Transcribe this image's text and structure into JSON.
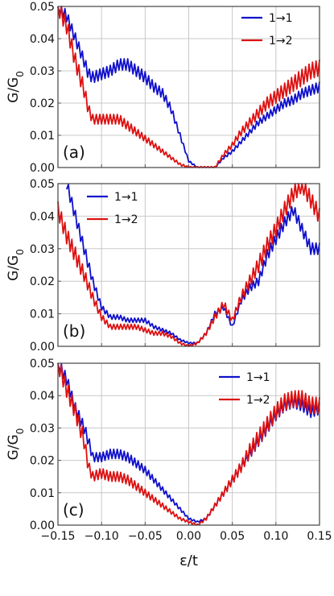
{
  "chart_data": [
    {
      "type": "line",
      "panel_label": "(a)",
      "ylabel": "G/G",
      "ylabel_sub": "0",
      "xlim": [
        -0.15,
        0.15
      ],
      "ylim": [
        0,
        0.05
      ],
      "yticks": [
        "0.00",
        "0.01",
        "0.02",
        "0.03",
        "0.04",
        "0.05"
      ],
      "grid": true,
      "legend": "top-right",
      "series": [
        {
          "name": "1→1",
          "color": "#1010cc",
          "x": [
            -0.15,
            -0.14,
            -0.13,
            -0.12,
            -0.115,
            -0.11,
            -0.1,
            -0.09,
            -0.08,
            -0.07,
            -0.06,
            -0.05,
            -0.04,
            -0.03,
            -0.02,
            -0.01,
            0.0,
            0.01,
            0.02,
            0.03,
            0.04,
            0.05,
            0.06,
            0.07,
            0.08,
            0.09,
            0.1,
            0.11,
            0.12,
            0.13,
            0.14,
            0.15
          ],
          "y": [
            0.05,
            0.047,
            0.04,
            0.033,
            0.029,
            0.028,
            0.029,
            0.03,
            0.032,
            0.032,
            0.03,
            0.028,
            0.025,
            0.023,
            0.018,
            0.01,
            0.002,
            0.0,
            0.0,
            0.0,
            0.003,
            0.005,
            0.008,
            0.011,
            0.014,
            0.016,
            0.018,
            0.02,
            0.021,
            0.023,
            0.024,
            0.025
          ]
        },
        {
          "name": "1→2",
          "color": "#dd1111",
          "x": [
            -0.15,
            -0.14,
            -0.13,
            -0.12,
            -0.115,
            -0.11,
            -0.1,
            -0.09,
            -0.08,
            -0.07,
            -0.06,
            -0.05,
            -0.04,
            -0.03,
            -0.02,
            -0.01,
            0.0,
            0.01,
            0.02,
            0.03,
            0.04,
            0.05,
            0.06,
            0.07,
            0.08,
            0.09,
            0.1,
            0.11,
            0.12,
            0.13,
            0.14,
            0.15
          ],
          "y": [
            0.05,
            0.044,
            0.033,
            0.024,
            0.018,
            0.015,
            0.015,
            0.015,
            0.015,
            0.013,
            0.011,
            0.009,
            0.007,
            0.005,
            0.003,
            0.001,
            0.0,
            0.0,
            0.0,
            0.0,
            0.004,
            0.007,
            0.011,
            0.014,
            0.017,
            0.02,
            0.022,
            0.024,
            0.026,
            0.028,
            0.03,
            0.031
          ]
        }
      ]
    },
    {
      "type": "line",
      "panel_label": "(b)",
      "ylabel": "G/G",
      "ylabel_sub": "0",
      "xlim": [
        -0.15,
        0.15
      ],
      "ylim": [
        0,
        0.05
      ],
      "yticks": [
        "0.00",
        "0.01",
        "0.02",
        "0.03",
        "0.04",
        "0.05"
      ],
      "grid": true,
      "legend": "top-left",
      "series": [
        {
          "name": "1→1",
          "color": "#1010cc",
          "x": [
            -0.14,
            -0.13,
            -0.12,
            -0.11,
            -0.1,
            -0.09,
            -0.08,
            -0.07,
            -0.06,
            -0.05,
            -0.04,
            -0.03,
            -0.02,
            -0.01,
            0.0,
            0.01,
            0.02,
            0.03,
            0.04,
            0.05,
            0.06,
            0.07,
            0.08,
            0.09,
            0.1,
            0.11,
            0.12,
            0.13,
            0.14,
            0.15
          ],
          "y": [
            0.05,
            0.04,
            0.03,
            0.02,
            0.012,
            0.009,
            0.009,
            0.008,
            0.008,
            0.008,
            0.006,
            0.005,
            0.004,
            0.002,
            0.001,
            0.001,
            0.004,
            0.01,
            0.012,
            0.006,
            0.014,
            0.018,
            0.02,
            0.028,
            0.033,
            0.038,
            0.042,
            0.036,
            0.03,
            0.03
          ]
        },
        {
          "name": "1→2",
          "color": "#dd1111",
          "x": [
            -0.15,
            -0.14,
            -0.13,
            -0.12,
            -0.11,
            -0.1,
            -0.09,
            -0.08,
            -0.07,
            -0.06,
            -0.05,
            -0.04,
            -0.03,
            -0.02,
            -0.01,
            0.0,
            0.01,
            0.02,
            0.03,
            0.04,
            0.05,
            0.06,
            0.07,
            0.08,
            0.09,
            0.1,
            0.11,
            0.12,
            0.13,
            0.14,
            0.15
          ],
          "y": [
            0.042,
            0.034,
            0.028,
            0.022,
            0.015,
            0.009,
            0.006,
            0.006,
            0.006,
            0.006,
            0.005,
            0.004,
            0.004,
            0.003,
            0.001,
            0.0,
            0.001,
            0.004,
            0.009,
            0.013,
            0.008,
            0.015,
            0.02,
            0.025,
            0.031,
            0.036,
            0.042,
            0.047,
            0.05,
            0.045,
            0.04
          ]
        }
      ]
    },
    {
      "type": "line",
      "panel_label": "(c)",
      "ylabel": "G/G",
      "ylabel_sub": "0",
      "xlabel": "ε/t",
      "xlim": [
        -0.15,
        0.15
      ],
      "ylim": [
        0,
        0.05
      ],
      "xticks": [
        "−0.15",
        "−0.10",
        "−0.05",
        "0.00",
        "0.05",
        "0.10",
        "0.15"
      ],
      "yticks": [
        "0.00",
        "0.01",
        "0.02",
        "0.03",
        "0.04",
        "0.05"
      ],
      "grid": true,
      "legend": "top-right",
      "series": [
        {
          "name": "1→1",
          "color": "#1010cc",
          "x": [
            -0.15,
            -0.14,
            -0.13,
            -0.12,
            -0.115,
            -0.11,
            -0.1,
            -0.09,
            -0.08,
            -0.07,
            -0.06,
            -0.05,
            -0.04,
            -0.03,
            -0.02,
            -0.01,
            0.0,
            0.01,
            0.02,
            0.03,
            0.04,
            0.05,
            0.06,
            0.07,
            0.08,
            0.09,
            0.1,
            0.11,
            0.12,
            0.13,
            0.14,
            0.15
          ],
          "y": [
            0.05,
            0.045,
            0.036,
            0.03,
            0.026,
            0.021,
            0.021,
            0.022,
            0.022,
            0.021,
            0.019,
            0.017,
            0.014,
            0.011,
            0.008,
            0.005,
            0.002,
            0.001,
            0.002,
            0.006,
            0.01,
            0.014,
            0.018,
            0.022,
            0.026,
            0.03,
            0.034,
            0.037,
            0.038,
            0.037,
            0.035,
            0.036
          ]
        },
        {
          "name": "1→2",
          "color": "#dd1111",
          "x": [
            -0.15,
            -0.14,
            -0.13,
            -0.12,
            -0.115,
            -0.11,
            -0.1,
            -0.09,
            -0.08,
            -0.07,
            -0.06,
            -0.05,
            -0.04,
            -0.03,
            -0.02,
            -0.01,
            0.0,
            0.01,
            0.02,
            0.03,
            0.04,
            0.05,
            0.06,
            0.07,
            0.08,
            0.09,
            0.1,
            0.11,
            0.12,
            0.13,
            0.14,
            0.15
          ],
          "y": [
            0.05,
            0.042,
            0.035,
            0.026,
            0.018,
            0.015,
            0.016,
            0.015,
            0.015,
            0.014,
            0.012,
            0.01,
            0.008,
            0.006,
            0.004,
            0.002,
            0.001,
            0.0,
            0.002,
            0.006,
            0.01,
            0.014,
            0.018,
            0.023,
            0.027,
            0.031,
            0.035,
            0.038,
            0.039,
            0.039,
            0.037,
            0.037
          ]
        }
      ]
    }
  ]
}
